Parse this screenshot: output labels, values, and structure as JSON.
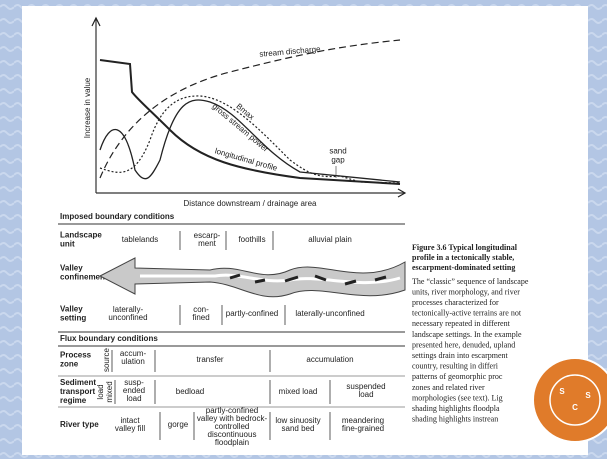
{
  "graph": {
    "y_axis": "Increase in value",
    "x_axis": "Distance downstream / drainage area",
    "stream_discharge": "stream discharge",
    "bmax": "Bmax",
    "gross_stream_power": "gross stream power",
    "longitudinal_profile": "longitudinal profile",
    "sand_gap": [
      "sand",
      "gap"
    ]
  },
  "imposed": {
    "title": "Imposed boundary conditions",
    "landscape_unit": {
      "label": [
        "Landscape",
        "unit"
      ],
      "cells": [
        [
          "tablelands"
        ],
        [
          "escarp-",
          "ment"
        ],
        [
          "foothills"
        ],
        [
          "alluvial plain"
        ]
      ]
    },
    "valley_confinement": {
      "label": [
        "Valley",
        "confinement"
      ]
    },
    "valley_setting": {
      "label": [
        "Valley",
        "setting"
      ],
      "cells": [
        [
          "laterally-",
          "unconfined"
        ],
        [
          "con-",
          "fined"
        ],
        [
          "partly-confined"
        ],
        [
          "laterally-unconfined"
        ]
      ]
    }
  },
  "flux": {
    "title": "Flux boundary conditions",
    "process_zone": {
      "label": [
        "Process",
        "zone"
      ],
      "cells": [
        [
          "source"
        ],
        [
          "accum-",
          "ulation"
        ],
        [
          "transfer"
        ],
        [
          "accumulation"
        ]
      ]
    },
    "sediment": {
      "label": [
        "Sediment",
        "transport",
        "regime"
      ],
      "cells": [
        [
          "load"
        ],
        [
          "mixed"
        ],
        [
          "susp-",
          "ended",
          "load"
        ],
        [
          "bedload"
        ],
        [
          "mixed load"
        ],
        [
          "suspended",
          "load"
        ]
      ]
    },
    "river_type": {
      "label": [
        "River type"
      ],
      "cells": [
        [
          "intact",
          "valley fill"
        ],
        [
          "gorge"
        ],
        [
          "partly-confined",
          "valley with bedrock-",
          "controlled",
          "discontinuous",
          "floodplain"
        ],
        [
          "low sinuosity",
          "sand bed"
        ],
        [
          "meandering",
          "fine-grained"
        ]
      ]
    }
  },
  "caption": {
    "title": [
      "Figure 3.6  Typical longitudinal",
      "profile in a tectonically stable,",
      "escarpment-dominated setting"
    ],
    "body": [
      "The “classic” sequence of landscape",
      "units, river morphology, and river",
      "processes characterized for",
      "tectonically-active terrains are not",
      "necessary repeated in different",
      "landscape settings. In the example",
      "presented here, denuded, upland",
      "settings drain into escarpment",
      "country, resulting in differi",
      "patterns of geomorphic proc",
      "zones and related river",
      "morphologies (see text). Lig",
      "shading highlights floodpla",
      "shading highlights instrean"
    ]
  },
  "logo": {
    "letters": [
      "S",
      "C",
      "S"
    ]
  }
}
